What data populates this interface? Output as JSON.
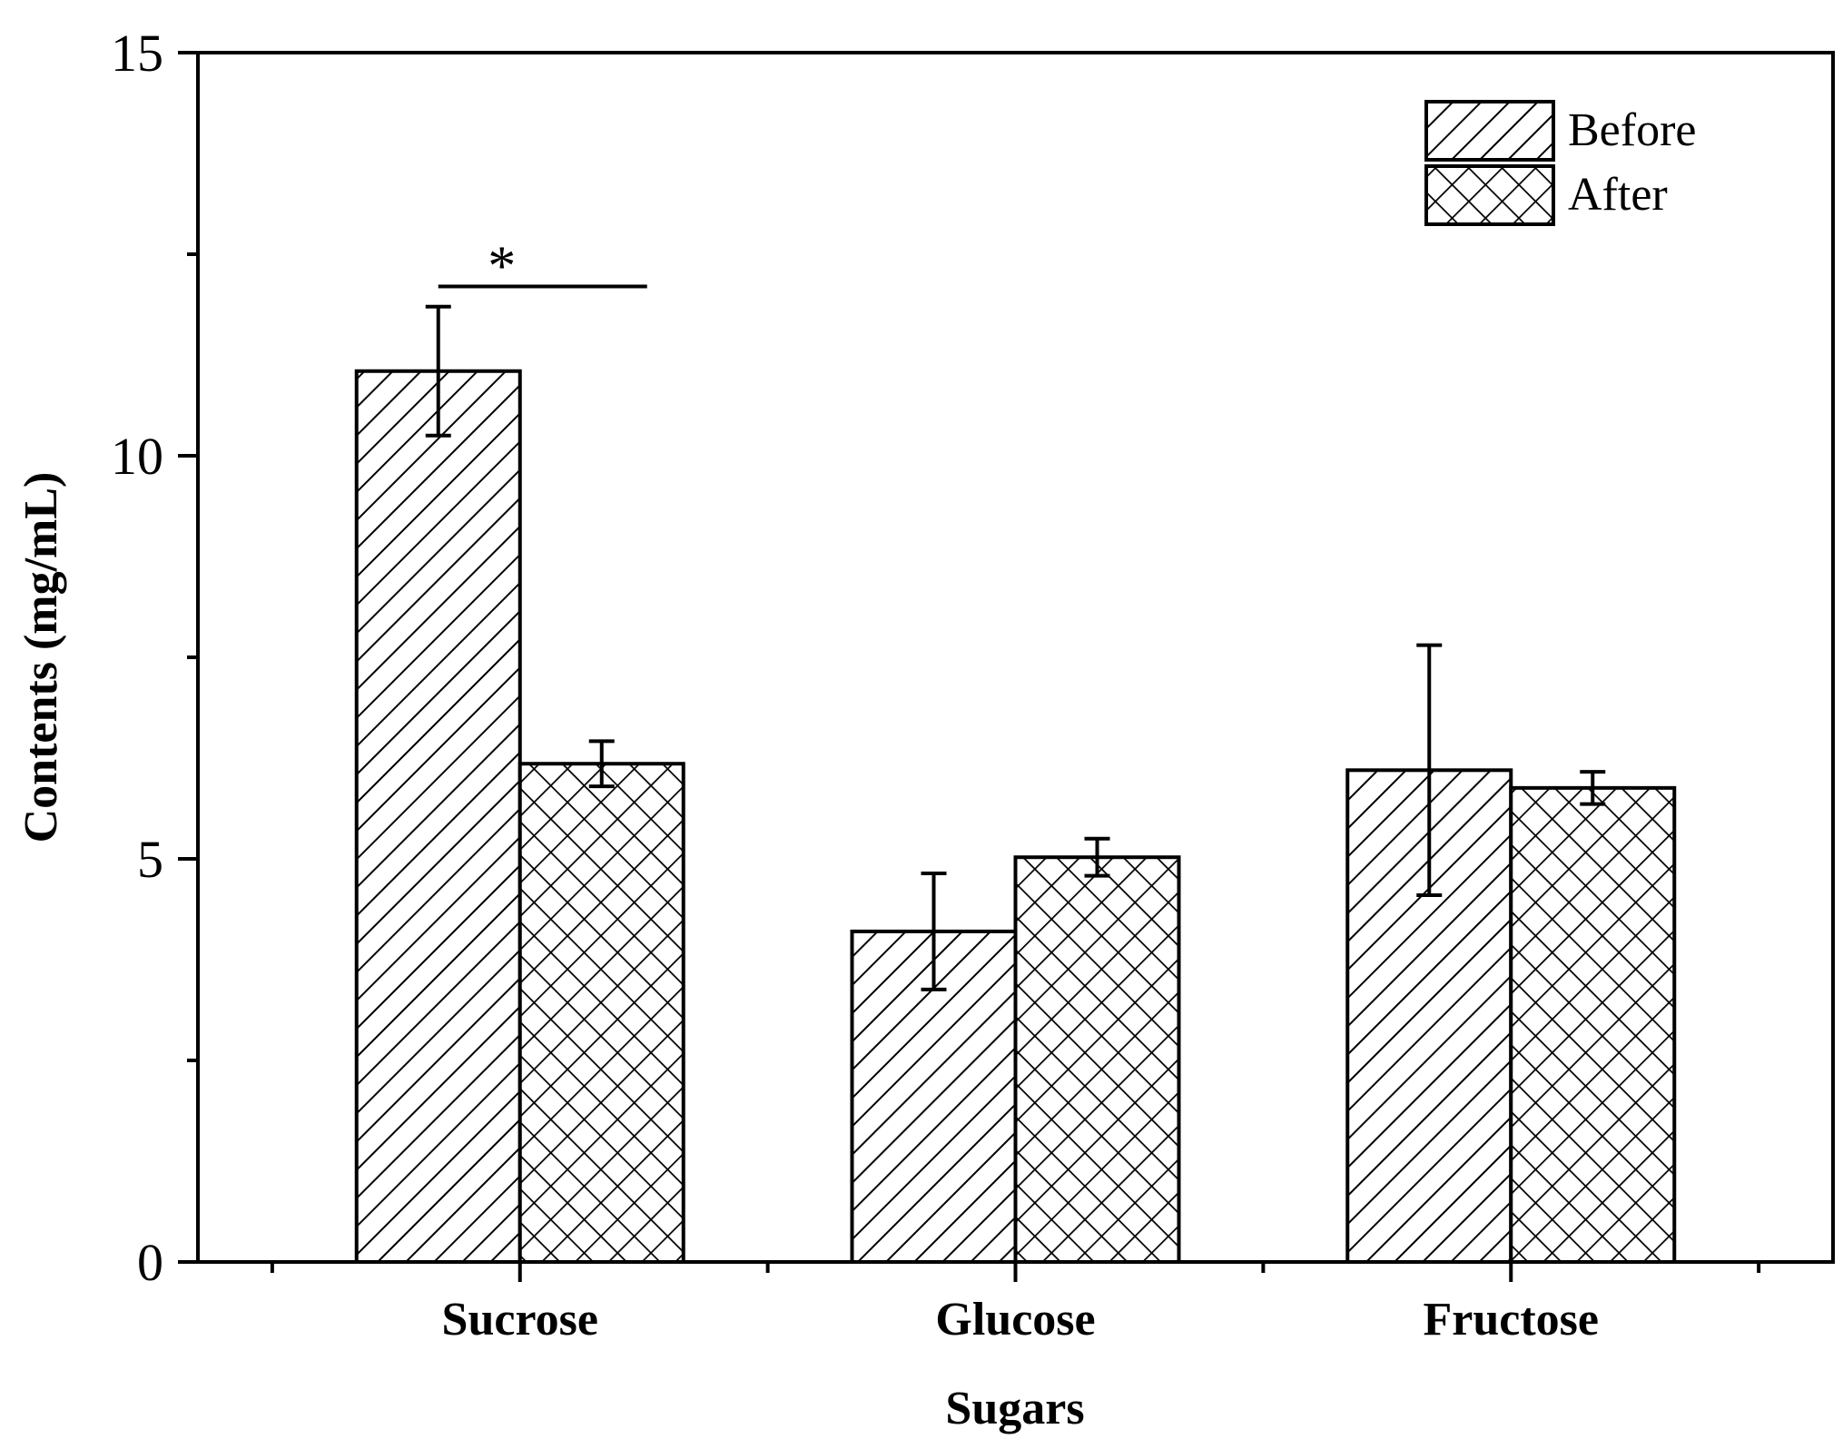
{
  "chart_data": {
    "type": "bar",
    "categories": [
      "Sucrose",
      "Glucose",
      "Fructose"
    ],
    "series": [
      {
        "name": "Before",
        "pattern": "diagonal-hatch",
        "values": [
          11.05,
          4.1,
          6.1
        ],
        "errors": [
          0.8,
          0.72,
          1.55
        ]
      },
      {
        "name": "After",
        "pattern": "cross-hatch",
        "values": [
          6.18,
          5.02,
          5.88
        ],
        "errors": [
          0.28,
          0.23,
          0.2
        ]
      }
    ],
    "xlabel": "Sugars",
    "ylabel": "Contents (mg/mL)",
    "ylim": [
      0,
      15
    ],
    "yticks": [
      0,
      5,
      10,
      15
    ],
    "legend_position": "top-right",
    "grid": false,
    "annotations": [
      {
        "text": "*",
        "category": "Sucrose",
        "y": 12.1
      }
    ],
    "colors": {
      "stroke": "#000000",
      "fill": "#ffffff"
    }
  }
}
